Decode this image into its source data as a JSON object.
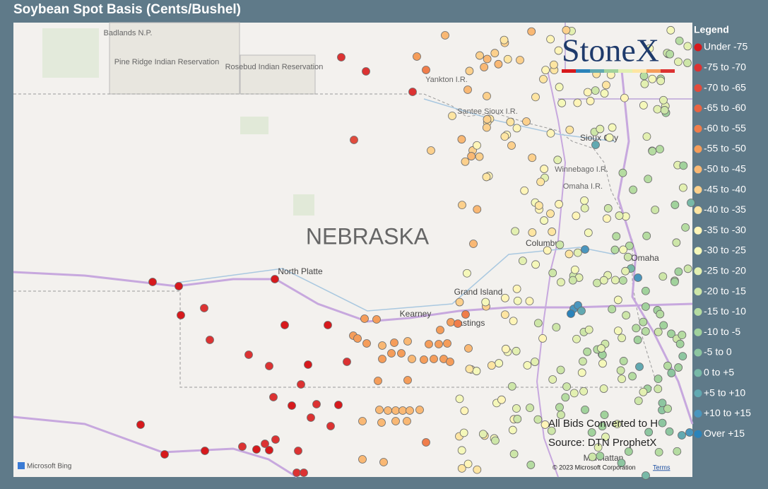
{
  "header": {
    "title": "Soybean Spot Basis (Cents/Bushel)"
  },
  "legend": {
    "title": "Legend",
    "items": [
      {
        "label": "Under -75",
        "color": "#d7191c"
      },
      {
        "label": "-75 to -70",
        "color": "#dc3232"
      },
      {
        "label": "-70 to -65",
        "color": "#e14b3c"
      },
      {
        "label": "-65 to -60",
        "color": "#e96442"
      },
      {
        "label": "-60 to -55",
        "color": "#f07d4a"
      },
      {
        "label": "-55 to -50",
        "color": "#f59d5a"
      },
      {
        "label": "-50 to -45",
        "color": "#f9b874"
      },
      {
        "label": "-45 to -40",
        "color": "#fcd08c"
      },
      {
        "label": "-40 to -35",
        "color": "#fee5a2"
      },
      {
        "label": "-35 to -30",
        "color": "#fff5b8"
      },
      {
        "label": "-30 to -25",
        "color": "#f5f8ba"
      },
      {
        "label": "-25 to -20",
        "color": "#e3f0b1"
      },
      {
        "label": "-20 to -15",
        "color": "#cde6a8"
      },
      {
        "label": "-15 to -10",
        "color": "#b5dca1"
      },
      {
        "label": "-10 to -5",
        "color": "#a1d29c"
      },
      {
        "label": "-5 to 0",
        "color": "#8dc6a0"
      },
      {
        "label": "0 to +5",
        "color": "#78b9a7"
      },
      {
        "label": "+5 to +10",
        "color": "#62a9b1"
      },
      {
        "label": "+10 to +15",
        "color": "#4a96be"
      },
      {
        "label": "Over +15",
        "color": "#2b83ba"
      }
    ]
  },
  "map": {
    "labels": [
      "Badlands N.P.",
      "Pine Ridge Indian Reservation",
      "Rosebud Indian Reservation",
      "Yankton I.R.",
      "Santee Sioux I.R.",
      "Sioux City",
      "Winnebago I.R.",
      "Omaha I.R.",
      "NEBRASKA",
      "North Platte",
      "Grand Island",
      "Kearney",
      "Hastings",
      "Columbus",
      "Omaha",
      "Manhattan"
    ]
  },
  "logo": "StoneX",
  "notes": [
    "All Bids Converted to H",
    "Source: DTN ProphetX"
  ],
  "attribution": {
    "bing": "Microsoft Bing",
    "copyright": "© 2023 Microsoft Corporation",
    "terms": "Terms"
  }
}
